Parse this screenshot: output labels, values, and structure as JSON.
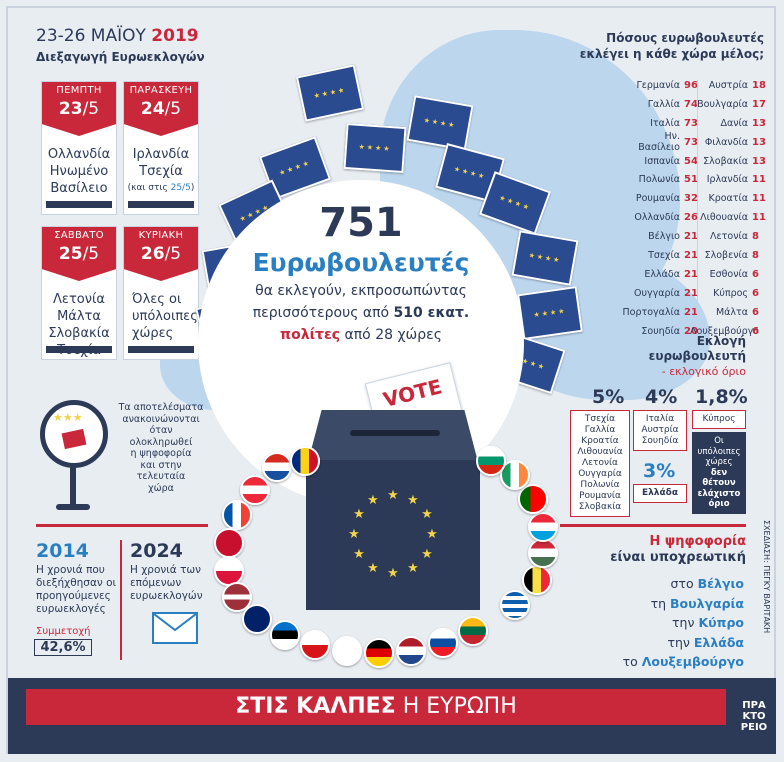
{
  "header": {
    "dates": "23-26 ΜΑΪΟΥ",
    "year": "2019",
    "subtitle": "Διεξαγωγή Ευρωεκλογών"
  },
  "cards": [
    {
      "day": "ΠΕΜΠΤΗ",
      "date_num": "23",
      "date_month": "/5",
      "lines": [
        "Ολλανδία",
        "Ηνωμένο",
        "Βασίλειο"
      ],
      "note": ""
    },
    {
      "day": "ΠΑΡΑΣΚΕΥΗ",
      "date_num": "24",
      "date_month": "/5",
      "lines": [
        "Ιρλανδία",
        "Τσεχία"
      ],
      "note_prefix": "(και στις ",
      "note_date": "25/5",
      "note_suffix": ")"
    },
    {
      "day": "ΣΑΒΒΑΤΟ",
      "date_num": "25",
      "date_month": "/5",
      "lines": [
        "Λετονία",
        "Μάλτα",
        "Σλοβακία",
        "Τσεχία"
      ]
    },
    {
      "day": "ΚΥΡΙΑΚΗ",
      "date_num": "26",
      "date_month": "/5",
      "lines": [
        "Όλες οι",
        "υπόλοιπες",
        "χώρες"
      ]
    }
  ],
  "center": {
    "number": "751",
    "title": "Ευρωβουλευτές",
    "line1": "θα εκλεγούν, εκπροσωπώντας",
    "line2_a": "περισσότερους από ",
    "line2_b": "510 εκατ.",
    "line3_a": "πολίτες",
    "line3_b": " από 28 χώρες"
  },
  "vote_label": "VOTE",
  "results_note": [
    "Τα αποτελέσματα",
    "ανακοινώνονται",
    "όταν",
    "ολοκληρωθεί",
    "η ψηφοφορία",
    "και στην",
    "τελευταία",
    "χώρα"
  ],
  "mep_table": {
    "title_1": "Πόσους ευρωβουλευτές",
    "title_2": "εκλέγει η κάθε χώρα μέλος;",
    "left": [
      {
        "country": "Γερμανία",
        "value": "96"
      },
      {
        "country": "Γαλλία",
        "value": "74"
      },
      {
        "country": "Ιταλία",
        "value": "73"
      },
      {
        "country": "Ην. Βασίλειο",
        "value": "73"
      },
      {
        "country": "Ισπανία",
        "value": "54"
      },
      {
        "country": "Πολωνία",
        "value": "51"
      },
      {
        "country": "Ρουμανία",
        "value": "32"
      },
      {
        "country": "Ολλανδία",
        "value": "26"
      },
      {
        "country": "Βέλγιο",
        "value": "21"
      },
      {
        "country": "Τσεχία",
        "value": "21"
      },
      {
        "country": "Ελλάδα",
        "value": "21"
      },
      {
        "country": "Ουγγαρία",
        "value": "21"
      },
      {
        "country": "Πορτογαλία",
        "value": "21"
      },
      {
        "country": "Σουηδία",
        "value": "20"
      }
    ],
    "right": [
      {
        "country": "Αυστρία",
        "value": "18"
      },
      {
        "country": "Βουλγαρία",
        "value": "17"
      },
      {
        "country": "Δανία",
        "value": "13"
      },
      {
        "country": "Φιλανδία",
        "value": "13"
      },
      {
        "country": "Σλοβακία",
        "value": "13"
      },
      {
        "country": "Ιρλανδία",
        "value": "11"
      },
      {
        "country": "Κροατία",
        "value": "11"
      },
      {
        "country": "Λιθουανία",
        "value": "11"
      },
      {
        "country": "Λετονία",
        "value": "8"
      },
      {
        "country": "Σλοβενία",
        "value": "8"
      },
      {
        "country": "Εσθονία",
        "value": "6"
      },
      {
        "country": "Κύπρος",
        "value": "6"
      },
      {
        "country": "Μάλτα",
        "value": "6"
      },
      {
        "country": "Λουξεμβούργο",
        "value": "6"
      }
    ]
  },
  "threshold": {
    "title_1": "Εκλογή",
    "title_2": "ευρωβουλευτή",
    "title_3": "- εκλογικό όριο",
    "p5": "5%",
    "p5_list": [
      "Τσεχία",
      "Γαλλία",
      "Κροατία",
      "Λιθουανία",
      "Λετονία",
      "Ουγγαρία",
      "Πολωνία",
      "Ρουμανία",
      "Σλοβακία"
    ],
    "p4": "4%",
    "p4_list": [
      "Ιταλία",
      "Αυστρία",
      "Σουηδία"
    ],
    "p18": "1,8%",
    "p18_list": [
      "Κύπρος"
    ],
    "p3": "3%",
    "p3_list": [
      "Ελλάδα"
    ],
    "none_note": [
      "Οι",
      "υπόλοιπες",
      "χώρες",
      "δεν",
      "θέτουν",
      "ελάχιστο",
      "όριο"
    ]
  },
  "history": {
    "y2014": "2014",
    "y2014_text": [
      "Η χρονιά που",
      "διεξήχθησαν οι",
      "προηγούμενες",
      "ευρωεκλογές"
    ],
    "turnout_label": "Συμμετοχή",
    "turnout_value": "42,6%",
    "y2024": "2024",
    "y2024_text": [
      "Η χρονιά των",
      "επόμενων",
      "ευρωεκλογών"
    ]
  },
  "mandatory": {
    "title_1": "Η ψηφοφορία",
    "title_2": "είναι υποχρεωτική",
    "items": [
      {
        "prefix": "στο ",
        "country": "Βέλγιο"
      },
      {
        "prefix": "τη ",
        "country": "Βουλγαρία"
      },
      {
        "prefix": "την ",
        "country": "Κύπρο"
      },
      {
        "prefix": "την ",
        "country": "Ελλάδα"
      },
      {
        "prefix": "το ",
        "country": "Λουξεμβούργο"
      }
    ]
  },
  "credit": "ΣΧΕΔΙΑΣΗ: ΠΕΓΚΥ ΒΑΡΙΤΑΚΗ",
  "footer": {
    "bold": "ΣΤΙΣ ΚΑΛΠΕΣ",
    "normal": " Η ΕΥΡΩΠΗ",
    "logo_1": "ΠΡΑ",
    "logo_2": "ΚΤΟ",
    "logo_3": "ΡΕΙΟ"
  },
  "colors": {
    "navy": "#2c3a57",
    "red": "#c8283a",
    "blue": "#2a7fc1",
    "eu_blue": "#2a4b8f",
    "map": "#bcd6ee"
  }
}
